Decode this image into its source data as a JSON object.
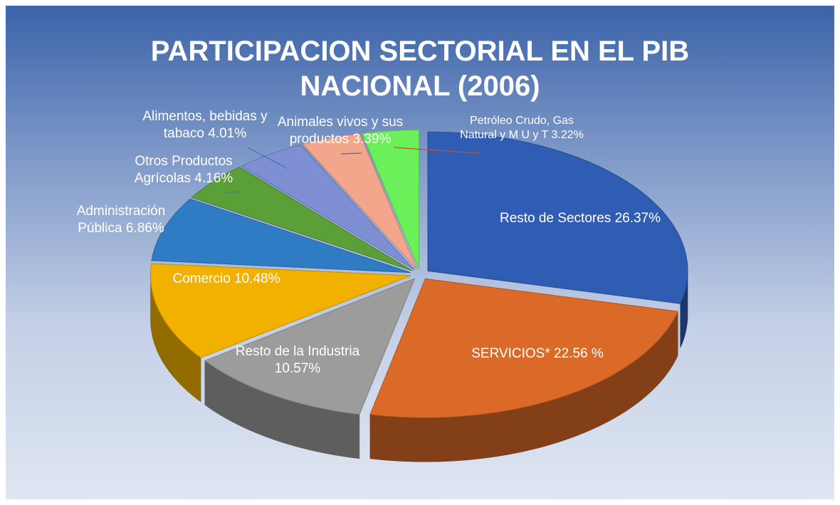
{
  "chart_data": {
    "type": "pie",
    "title": "PARTICIPACION SECTORIAL EN EL PIB NACIONAL (2006)",
    "categories": [
      "Resto de Sectores",
      "SERVICIOS*",
      "Resto de la Industria",
      "Comercio",
      "Administración Pública",
      "Otros Productos Agrícolas",
      "Alimentos, bebidas y tabaco",
      "Animales vivos y  sus productos",
      "Petróleo Crudo, Gas Natural y  M U y T"
    ],
    "values": [
      26.37,
      22.56,
      10.57,
      10.48,
      6.86,
      4.16,
      4.01,
      3.39,
      3.22
    ],
    "value_labels": [
      "26.37%",
      "22.56 %",
      "10.57%",
      "10.48%",
      "6.86%",
      "4.16%",
      "4.01%",
      "3.39%",
      "3.22%"
    ],
    "colors": [
      "#2f5db3",
      "#db6a28",
      "#9c9c9c",
      "#f2b100",
      "#2f7bc4",
      "#5a9f38",
      "#7e8fd4",
      "#f4a68c",
      "#6cf05a"
    ]
  }
}
